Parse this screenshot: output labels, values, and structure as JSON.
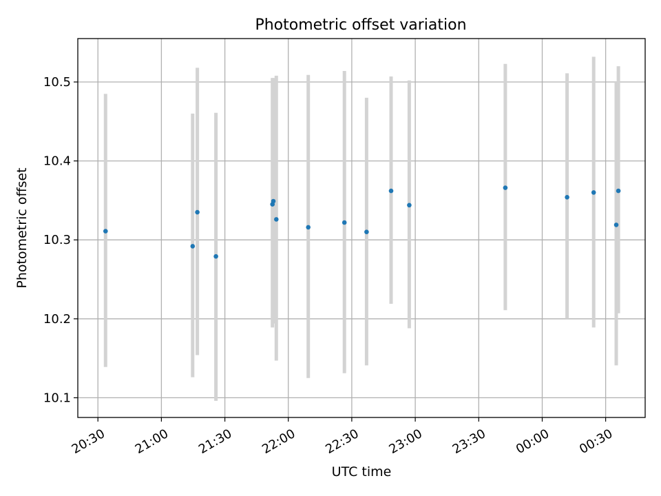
{
  "chart_data": {
    "type": "scatter",
    "title": "Photometric offset variation",
    "xlabel": "UTC time",
    "ylabel": "Photometric offset",
    "grid": true,
    "legend": "none",
    "x_tick_labels": [
      "20:30",
      "21:00",
      "21:30",
      "22:00",
      "22:30",
      "23:00",
      "23:30",
      "00:00",
      "00:30"
    ],
    "x_ticks": [
      "2000-01-01T20:30",
      "2000-01-01T21:00",
      "2000-01-01T21:30",
      "2000-01-01T22:00",
      "2000-01-01T22:30",
      "2000-01-01T23:00",
      "2000-01-01T23:30",
      "2000-01-02T00:00",
      "2000-01-02T00:30"
    ],
    "xlim": [
      "2000-01-01T20:20:30",
      "2000-01-02T00:48:40"
    ],
    "y_ticks": [
      10.1,
      10.2,
      10.3,
      10.4,
      10.5
    ],
    "y_tick_labels": [
      "10.1",
      "10.2",
      "10.3",
      "10.4",
      "10.5"
    ],
    "ylim": [
      10.075,
      10.555
    ],
    "colors": {
      "points": "#1f77b4",
      "errorbars": "#d3d3d3"
    },
    "points": [
      {
        "x": "2000-01-01T20:33:36",
        "y": 10.311,
        "ylow": 10.139,
        "yhigh": 10.485
      },
      {
        "x": "2000-01-01T21:14:48",
        "y": 10.292,
        "ylow": 10.126,
        "yhigh": 10.46
      },
      {
        "x": "2000-01-01T21:17:00",
        "y": 10.335,
        "ylow": 10.154,
        "yhigh": 10.518
      },
      {
        "x": "2000-01-01T21:25:48",
        "y": 10.279,
        "ylow": 10.096,
        "yhigh": 10.461
      },
      {
        "x": "2000-01-01T21:52:30",
        "y": 10.345,
        "ylow": 10.189,
        "yhigh": 10.505
      },
      {
        "x": "2000-01-01T21:52:55",
        "y": 10.349,
        "ylow": 10.194,
        "yhigh": 10.505
      },
      {
        "x": "2000-01-01T21:54:20",
        "y": 10.326,
        "ylow": 10.147,
        "yhigh": 10.508
      },
      {
        "x": "2000-01-01T22:09:25",
        "y": 10.316,
        "ylow": 10.125,
        "yhigh": 10.509
      },
      {
        "x": "2000-01-01T22:26:30",
        "y": 10.322,
        "ylow": 10.131,
        "yhigh": 10.514
      },
      {
        "x": "2000-01-01T22:37:00",
        "y": 10.31,
        "ylow": 10.141,
        "yhigh": 10.48
      },
      {
        "x": "2000-01-01T22:48:35",
        "y": 10.362,
        "ylow": 10.219,
        "yhigh": 10.507
      },
      {
        "x": "2000-01-01T22:57:10",
        "y": 10.344,
        "ylow": 10.188,
        "yhigh": 10.502
      },
      {
        "x": "2000-01-01T23:42:35",
        "y": 10.366,
        "ylow": 10.211,
        "yhigh": 10.523
      },
      {
        "x": "2000-01-02T00:11:45",
        "y": 10.354,
        "ylow": 10.2,
        "yhigh": 10.511
      },
      {
        "x": "2000-01-02T00:24:20",
        "y": 10.36,
        "ylow": 10.189,
        "yhigh": 10.532
      },
      {
        "x": "2000-01-02T00:35:00",
        "y": 10.319,
        "ylow": 10.141,
        "yhigh": 10.5
      },
      {
        "x": "2000-01-02T00:36:00",
        "y": 10.362,
        "ylow": 10.207,
        "yhigh": 10.52
      }
    ]
  }
}
